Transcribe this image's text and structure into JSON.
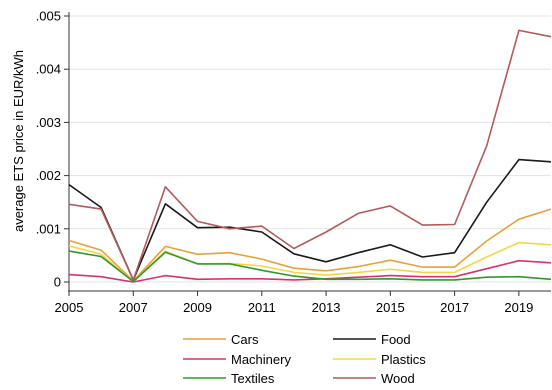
{
  "chart_data": {
    "type": "line",
    "title": "",
    "xlabel": "",
    "ylabel": "average ETS price in EUR/kWh",
    "x": [
      2005,
      2006,
      2007,
      2008,
      2009,
      2010,
      2011,
      2012,
      2013,
      2014,
      2015,
      2016,
      2017,
      2018,
      2019,
      2020
    ],
    "xlim": [
      2005,
      2020
    ],
    "ylim": [
      0,
      0.005
    ],
    "x_ticks": [
      2005,
      2007,
      2009,
      2011,
      2013,
      2015,
      2017,
      2019
    ],
    "x_tick_labels": [
      "2005",
      "2007",
      "2009",
      "2011",
      "2013",
      "2015",
      "2017",
      "2019"
    ],
    "y_ticks": [
      0,
      0.001,
      0.002,
      0.003,
      0.004,
      0.005
    ],
    "y_tick_labels": [
      "0",
      ".001",
      ".002",
      ".003",
      ".004",
      ".005"
    ],
    "grid": "horizontal",
    "legend_position": "bottom",
    "series": [
      {
        "name": "Cars",
        "color": "#e8a13a",
        "values": [
          0.00078,
          0.0006,
          2e-05,
          0.00067,
          0.00052,
          0.00055,
          0.00043,
          0.00026,
          0.00021,
          0.00029,
          0.00041,
          0.00028,
          0.00028,
          0.00077,
          0.00118,
          0.00137
        ]
      },
      {
        "name": "Food",
        "color": "#1a1a1a",
        "values": [
          0.00183,
          0.0014,
          4e-05,
          0.00147,
          0.00102,
          0.00103,
          0.00094,
          0.00053,
          0.00038,
          0.00055,
          0.0007,
          0.00047,
          0.00055,
          0.0015,
          0.0023,
          0.00226
        ]
      },
      {
        "name": "Machinery",
        "color": "#d6336c",
        "values": [
          0.00014,
          0.0001,
          0.0,
          0.00012,
          5e-05,
          6e-05,
          6e-05,
          4e-05,
          6e-05,
          9e-05,
          0.00012,
          0.0001,
          0.0001,
          0.00025,
          0.0004,
          0.00036
        ]
      },
      {
        "name": "Plastics",
        "color": "#f5d547",
        "values": [
          0.00068,
          0.00052,
          1e-05,
          0.00058,
          0.00034,
          0.00035,
          0.0003,
          0.00018,
          0.00013,
          0.00018,
          0.00024,
          0.00018,
          0.00018,
          0.00047,
          0.00074,
          0.0007
        ]
      },
      {
        "name": "Textiles",
        "color": "#2e9a2e",
        "values": [
          0.00058,
          0.00048,
          1e-05,
          0.00056,
          0.00034,
          0.00034,
          0.00022,
          0.00011,
          5e-05,
          5e-05,
          6e-05,
          4e-05,
          4e-05,
          9e-05,
          0.0001,
          5e-05
        ]
      },
      {
        "name": "Wood",
        "color": "#b35a5a",
        "values": [
          0.00146,
          0.00137,
          4e-05,
          0.00179,
          0.00114,
          0.001,
          0.00105,
          0.00063,
          0.00094,
          0.00129,
          0.00143,
          0.00107,
          0.00108,
          0.00256,
          0.00473,
          0.00461
        ]
      }
    ]
  }
}
